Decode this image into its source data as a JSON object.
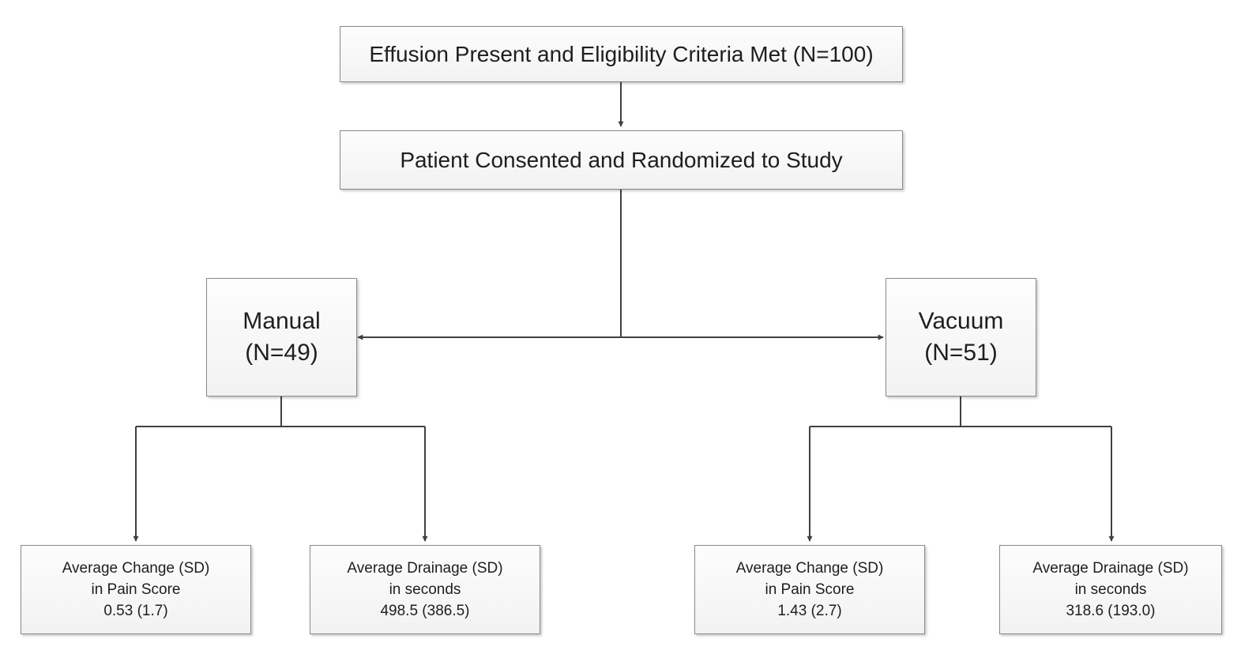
{
  "diagram": {
    "eligibility": {
      "label": "Effusion Present and Eligibility Criteria Met (N=100)"
    },
    "randomization": {
      "label": "Patient Consented and Randomized to Study"
    },
    "arms": [
      {
        "name": "Manual",
        "count": "(N=49)",
        "results": [
          {
            "line1": "Average Change (SD)",
            "line2": "in Pain Score",
            "value": "0.53 (1.7)"
          },
          {
            "line1": "Average Drainage (SD)",
            "line2": "in seconds",
            "value": "498.5 (386.5)"
          }
        ]
      },
      {
        "name": "Vacuum",
        "count": "(N=51)",
        "results": [
          {
            "line1": "Average Change (SD)",
            "line2": "in Pain Score",
            "value": "1.43 (2.7)"
          },
          {
            "line1": "Average Drainage (SD)",
            "line2": "in seconds",
            "value": "318.6 (193.0)"
          }
        ]
      }
    ]
  }
}
